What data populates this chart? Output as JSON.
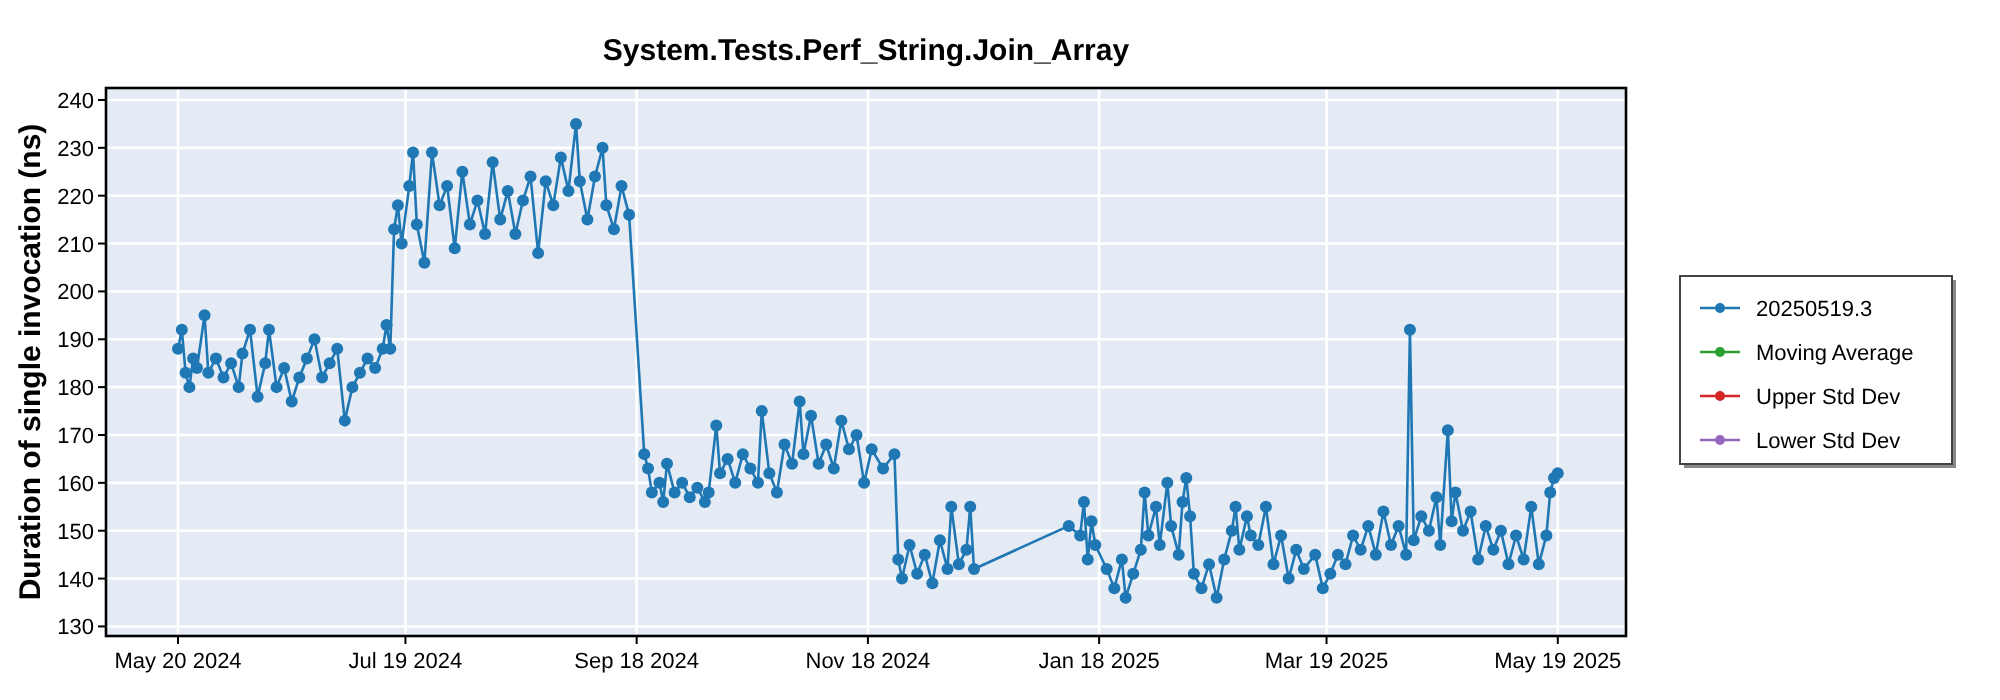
{
  "chart_data": {
    "type": "line",
    "title": "System.Tests.Perf_String.Join_Array",
    "ylabel": "Duration of single invocation (ns)",
    "xlim": [
      "2024-05-01",
      "2025-06-06"
    ],
    "xticks": [
      {
        "value": "2024-05-20",
        "label": "May 20 2024"
      },
      {
        "value": "2024-07-19",
        "label": "Jul 19 2024"
      },
      {
        "value": "2024-09-18",
        "label": "Sep 18 2024"
      },
      {
        "value": "2024-11-18",
        "label": "Nov 18 2024"
      },
      {
        "value": "2025-01-18",
        "label": "Jan 18 2025"
      },
      {
        "value": "2025-03-19",
        "label": "Mar 19 2025"
      },
      {
        "value": "2025-05-19",
        "label": "May 19 2025"
      }
    ],
    "ylim": [
      128,
      242.5
    ],
    "yticks": [
      130,
      140,
      150,
      160,
      170,
      180,
      190,
      200,
      210,
      220,
      230,
      240
    ],
    "grid": true,
    "legend": "right",
    "marker": "circle",
    "line_style": "solid",
    "series": [
      {
        "name": "20250519.3",
        "color": "#1f77b4",
        "x": [
          "2024-05-20",
          "2024-05-21",
          "2024-05-22",
          "2024-05-23",
          "2024-05-24",
          "2024-05-25",
          "2024-05-27",
          "2024-05-28",
          "2024-05-30",
          "2024-06-01",
          "2024-06-03",
          "2024-06-05",
          "2024-06-06",
          "2024-06-08",
          "2024-06-10",
          "2024-06-12",
          "2024-06-13",
          "2024-06-15",
          "2024-06-17",
          "2024-06-19",
          "2024-06-21",
          "2024-06-23",
          "2024-06-25",
          "2024-06-27",
          "2024-06-29",
          "2024-07-01",
          "2024-07-03",
          "2024-07-05",
          "2024-07-07",
          "2024-07-09",
          "2024-07-11",
          "2024-07-13",
          "2024-07-14",
          "2024-07-15",
          "2024-07-16",
          "2024-07-17",
          "2024-07-18",
          "2024-07-20",
          "2024-07-21",
          "2024-07-22",
          "2024-07-24",
          "2024-07-26",
          "2024-07-28",
          "2024-07-30",
          "2024-08-01",
          "2024-08-03",
          "2024-08-05",
          "2024-08-07",
          "2024-08-09",
          "2024-08-11",
          "2024-08-13",
          "2024-08-15",
          "2024-08-17",
          "2024-08-19",
          "2024-08-21",
          "2024-08-23",
          "2024-08-25",
          "2024-08-27",
          "2024-08-29",
          "2024-08-31",
          "2024-09-02",
          "2024-09-03",
          "2024-09-05",
          "2024-09-07",
          "2024-09-09",
          "2024-09-10",
          "2024-09-12",
          "2024-09-14",
          "2024-09-16",
          "2024-09-20",
          "2024-09-21",
          "2024-09-22",
          "2024-09-24",
          "2024-09-25",
          "2024-09-26",
          "2024-09-28",
          "2024-09-30",
          "2024-10-02",
          "2024-10-04",
          "2024-10-06",
          "2024-10-07",
          "2024-10-09",
          "2024-10-10",
          "2024-10-12",
          "2024-10-14",
          "2024-10-16",
          "2024-10-18",
          "2024-10-20",
          "2024-10-21",
          "2024-10-23",
          "2024-10-25",
          "2024-10-27",
          "2024-10-29",
          "2024-10-31",
          "2024-11-01",
          "2024-11-03",
          "2024-11-05",
          "2024-11-07",
          "2024-11-09",
          "2024-11-11",
          "2024-11-13",
          "2024-11-15",
          "2024-11-17",
          "2024-11-19",
          "2024-11-22",
          "2024-11-25",
          "2024-11-26",
          "2024-11-27",
          "2024-11-29",
          "2024-12-01",
          "2024-12-03",
          "2024-12-05",
          "2024-12-07",
          "2024-12-09",
          "2024-12-10",
          "2024-12-12",
          "2024-12-14",
          "2024-12-15",
          "2024-12-16",
          "2025-01-10",
          "2025-01-13",
          "2025-01-14",
          "2025-01-15",
          "2025-01-16",
          "2025-01-17",
          "2025-01-20",
          "2025-01-22",
          "2025-01-24",
          "2025-01-25",
          "2025-01-27",
          "2025-01-29",
          "2025-01-30",
          "2025-01-31",
          "2025-02-02",
          "2025-02-03",
          "2025-02-05",
          "2025-02-06",
          "2025-02-08",
          "2025-02-09",
          "2025-02-10",
          "2025-02-11",
          "2025-02-12",
          "2025-02-14",
          "2025-02-16",
          "2025-02-18",
          "2025-02-20",
          "2025-02-22",
          "2025-02-23",
          "2025-02-24",
          "2025-02-26",
          "2025-02-27",
          "2025-03-01",
          "2025-03-03",
          "2025-03-05",
          "2025-03-07",
          "2025-03-09",
          "2025-03-11",
          "2025-03-13",
          "2025-03-16",
          "2025-03-18",
          "2025-03-20",
          "2025-03-22",
          "2025-03-24",
          "2025-03-26",
          "2025-03-28",
          "2025-03-30",
          "2025-04-01",
          "2025-04-03",
          "2025-04-05",
          "2025-04-07",
          "2025-04-09",
          "2025-04-10",
          "2025-04-11",
          "2025-04-13",
          "2025-04-15",
          "2025-04-17",
          "2025-04-18",
          "2025-04-20",
          "2025-04-21",
          "2025-04-22",
          "2025-04-24",
          "2025-04-26",
          "2025-04-28",
          "2025-04-30",
          "2025-05-02",
          "2025-05-04",
          "2025-05-06",
          "2025-05-08",
          "2025-05-10",
          "2025-05-12",
          "2025-05-14",
          "2025-05-16",
          "2025-05-17",
          "2025-05-18",
          "2025-05-19"
        ],
        "values": [
          188,
          192,
          183,
          180,
          186,
          184,
          195,
          183,
          186,
          182,
          185,
          180,
          187,
          192,
          178,
          185,
          192,
          180,
          184,
          177,
          182,
          186,
          190,
          182,
          185,
          188,
          173,
          180,
          183,
          186,
          184,
          188,
          193,
          188,
          213,
          218,
          210,
          222,
          229,
          214,
          206,
          229,
          218,
          222,
          209,
          225,
          214,
          219,
          212,
          227,
          215,
          221,
          212,
          219,
          224,
          208,
          223,
          218,
          228,
          221,
          235,
          223,
          215,
          224,
          230,
          218,
          213,
          222,
          216,
          166,
          163,
          158,
          160,
          156,
          164,
          158,
          160,
          157,
          159,
          156,
          158,
          172,
          162,
          165,
          160,
          166,
          163,
          160,
          175,
          162,
          158,
          168,
          164,
          177,
          166,
          174,
          164,
          168,
          163,
          173,
          167,
          170,
          160,
          167,
          163,
          166,
          144,
          140,
          147,
          141,
          145,
          139,
          148,
          142,
          155,
          143,
          146,
          155,
          142,
          151,
          149,
          156,
          144,
          152,
          147,
          142,
          138,
          144,
          136,
          141,
          146,
          158,
          149,
          155,
          147,
          160,
          151,
          145,
          156,
          161,
          153,
          141,
          138,
          143,
          136,
          144,
          150,
          155,
          146,
          153,
          149,
          147,
          155,
          143,
          149,
          140,
          146,
          142,
          145,
          138,
          141,
          145,
          143,
          149,
          146,
          151,
          145,
          154,
          147,
          151,
          145,
          192,
          148,
          153,
          150,
          157,
          147,
          171,
          152,
          158,
          150,
          154,
          144,
          151,
          146,
          150,
          143,
          149,
          144,
          155,
          143,
          149,
          158,
          161,
          162
        ]
      },
      {
        "name": "Moving Average",
        "color": "#2ca02c"
      },
      {
        "name": "Upper Std Dev",
        "color": "#d62728"
      },
      {
        "name": "Lower Std Dev",
        "color": "#9467bd"
      }
    ]
  }
}
